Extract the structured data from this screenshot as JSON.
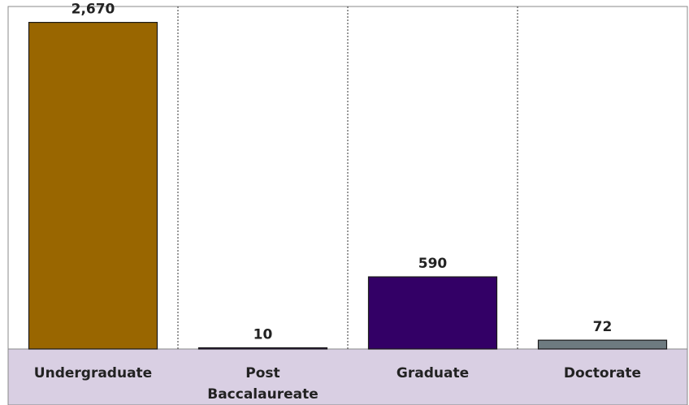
{
  "chart_data": {
    "type": "bar",
    "categories": [
      [
        "Undergraduate"
      ],
      [
        "Post",
        "Baccalaureate"
      ],
      [
        "Graduate"
      ],
      [
        "Doctorate"
      ]
    ],
    "values": [
      2670,
      10,
      590,
      72
    ],
    "value_labels": [
      "2,670",
      "10",
      "590",
      "72"
    ],
    "bar_colors": [
      "#996600",
      "#3d1460",
      "#330066",
      "#6e7b80"
    ],
    "category_band_color": "#d9cfe3",
    "ylim": [
      0,
      2800
    ],
    "grid": "vertical-dotted-separators",
    "legend": "none"
  }
}
